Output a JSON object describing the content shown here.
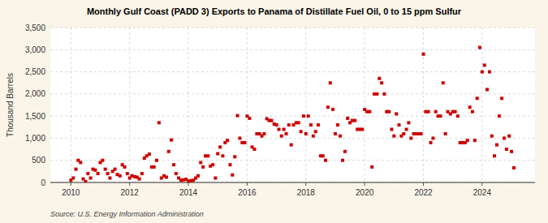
{
  "chart_data": {
    "type": "scatter",
    "title": "Monthly Gulf Coast (PADD 3) Exports to Panama of Distillate Fuel Oil, 0 to 15 ppm Sulfur",
    "y_label": "Thousand Barrels",
    "annotations": [
      "Source: U.S. Energy Information Administration"
    ],
    "color": "#cc0000",
    "marker": "square",
    "grid": true,
    "xlim": [
      2009.3,
      2025.8
    ],
    "xticks": [
      2010,
      2012,
      2014,
      2016,
      2018,
      2020,
      2022,
      2024
    ],
    "ylim": [
      0,
      3500
    ],
    "yticks": [
      0,
      500,
      {
        "value": 1000,
        "label": "1,000"
      },
      {
        "value": 1500,
        "label": "1,500"
      },
      {
        "value": 2000,
        "label": "2,000"
      },
      {
        "value": 2500,
        "label": "2,500"
      },
      {
        "value": 3000,
        "label": "3,000"
      },
      {
        "value": 3500,
        "label": "3,500"
      }
    ],
    "x": [
      2010.0,
      2010.08,
      2010.17,
      2010.25,
      2010.33,
      2010.42,
      2010.5,
      2010.58,
      2010.67,
      2010.75,
      2010.83,
      2010.92,
      2011.0,
      2011.08,
      2011.17,
      2011.25,
      2011.33,
      2011.42,
      2011.5,
      2011.58,
      2011.67,
      2011.75,
      2011.83,
      2011.92,
      2012.0,
      2012.08,
      2012.17,
      2012.25,
      2012.33,
      2012.42,
      2012.5,
      2012.58,
      2012.67,
      2012.75,
      2012.83,
      2012.92,
      2013.0,
      2013.08,
      2013.17,
      2013.25,
      2013.33,
      2013.42,
      2013.5,
      2013.58,
      2013.67,
      2013.75,
      2013.83,
      2013.92,
      2014.0,
      2014.08,
      2014.17,
      2014.25,
      2014.33,
      2014.42,
      2014.5,
      2014.58,
      2014.67,
      2014.75,
      2014.83,
      2014.92,
      2015.0,
      2015.08,
      2015.17,
      2015.25,
      2015.33,
      2015.42,
      2015.5,
      2015.58,
      2015.67,
      2015.75,
      2015.83,
      2015.92,
      2016.0,
      2016.08,
      2016.17,
      2016.25,
      2016.33,
      2016.42,
      2016.5,
      2016.58,
      2016.67,
      2016.75,
      2016.83,
      2016.92,
      2017.0,
      2017.08,
      2017.17,
      2017.25,
      2017.33,
      2017.42,
      2017.5,
      2017.58,
      2017.67,
      2017.75,
      2017.83,
      2017.92,
      2018.0,
      2018.08,
      2018.17,
      2018.25,
      2018.33,
      2018.42,
      2018.5,
      2018.58,
      2018.67,
      2018.75,
      2018.83,
      2018.92,
      2019.0,
      2019.08,
      2019.17,
      2019.25,
      2019.33,
      2019.42,
      2019.5,
      2019.58,
      2019.67,
      2019.75,
      2019.83,
      2019.92,
      2020.0,
      2020.08,
      2020.17,
      2020.25,
      2020.33,
      2020.42,
      2020.5,
      2020.58,
      2020.67,
      2020.75,
      2020.83,
      2020.92,
      2021.0,
      2021.08,
      2021.17,
      2021.25,
      2021.33,
      2021.42,
      2021.5,
      2021.58,
      2021.67,
      2021.75,
      2021.83,
      2021.92,
      2022.0,
      2022.08,
      2022.17,
      2022.25,
      2022.33,
      2022.42,
      2022.5,
      2022.58,
      2022.67,
      2022.75,
      2022.83,
      2022.92,
      2023.0,
      2023.08,
      2023.17,
      2023.25,
      2023.33,
      2023.42,
      2023.5,
      2023.58,
      2023.67,
      2023.75,
      2023.83,
      2023.92,
      2024.0,
      2024.08,
      2024.17,
      2024.25,
      2024.33,
      2024.42,
      2024.5,
      2024.58,
      2024.67,
      2024.75,
      2024.83,
      2024.92,
      2025.0,
      2025.08
    ],
    "values": [
      50,
      100,
      300,
      500,
      450,
      80,
      20,
      200,
      100,
      300,
      280,
      200,
      450,
      500,
      300,
      200,
      100,
      250,
      300,
      180,
      150,
      400,
      350,
      200,
      100,
      150,
      130,
      120,
      80,
      200,
      550,
      600,
      640,
      350,
      350,
      500,
      1350,
      100,
      150,
      120,
      700,
      960,
      400,
      200,
      100,
      50,
      60,
      70,
      30,
      40,
      50,
      100,
      150,
      450,
      350,
      600,
      600,
      370,
      400,
      100,
      650,
      800,
      600,
      900,
      950,
      400,
      170,
      580,
      1510,
      1000,
      900,
      900,
      1500,
      1450,
      800,
      750,
      1100,
      1100,
      1050,
      1100,
      1440,
      1400,
      1400,
      1320,
      1300,
      1200,
      1050,
      1200,
      1100,
      1300,
      850,
      1300,
      1350,
      1350,
      1150,
      1500,
      1100,
      1500,
      1300,
      1050,
      1150,
      1300,
      600,
      600,
      500,
      1700,
      2250,
      1650,
      1100,
      1300,
      1050,
      500,
      700,
      1450,
      1350,
      1400,
      1400,
      1200,
      1200,
      1200,
      1650,
      1600,
      1600,
      350,
      2000,
      2000,
      2350,
      2250,
      2000,
      1600,
      1600,
      1200,
      1050,
      1550,
      1300,
      1050,
      1100,
      1200,
      1350,
      1000,
      1100,
      1100,
      1100,
      1100,
      2900,
      1600,
      1600,
      900,
      1000,
      1600,
      1500,
      1500,
      2250,
      1100,
      1600,
      1550,
      1600,
      1600,
      1500,
      900,
      900,
      900,
      950,
      1700,
      1600,
      950,
      1900,
      3050,
      2500,
      2650,
      2100,
      2500,
      1050,
      600,
      850,
      1500,
      1900,
      1000,
      750,
      1050,
      700,
      330
    ]
  }
}
